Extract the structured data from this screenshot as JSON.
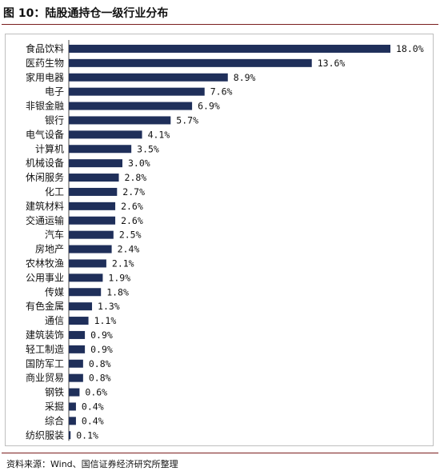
{
  "figure": {
    "title": "图 10：陆股通持仓一级行业分布",
    "source": "资料来源：Wind、国信证券经济研究所整理"
  },
  "colors": {
    "bar": "#1f2f5a",
    "rule": "#7a1e1e",
    "frame": "#bfbfbf"
  },
  "chart_data": {
    "type": "bar",
    "orientation": "horizontal",
    "categories": [
      "食品饮料",
      "医药生物",
      "家用电器",
      "电子",
      "非银金融",
      "银行",
      "电气设备",
      "计算机",
      "机械设备",
      "休闲服务",
      "化工",
      "建筑材料",
      "交通运输",
      "汽车",
      "房地产",
      "农林牧渔",
      "公用事业",
      "传媒",
      "有色金属",
      "通信",
      "建筑装饰",
      "轻工制造",
      "国防军工",
      "商业贸易",
      "钢铁",
      "采掘",
      "综合",
      "纺织服装"
    ],
    "values": [
      18.0,
      13.6,
      8.9,
      7.6,
      6.9,
      5.7,
      4.1,
      3.5,
      3.0,
      2.8,
      2.7,
      2.6,
      2.6,
      2.5,
      2.4,
      2.1,
      1.9,
      1.8,
      1.3,
      1.1,
      0.9,
      0.9,
      0.8,
      0.8,
      0.6,
      0.4,
      0.4,
      0.1
    ],
    "labels": [
      "18.0%",
      "13.6%",
      "8.9%",
      "7.6%",
      "6.9%",
      "5.7%",
      "4.1%",
      "3.5%",
      "3.0%",
      "2.8%",
      "2.7%",
      "2.6%",
      "2.6%",
      "2.5%",
      "2.4%",
      "2.1%",
      "1.9%",
      "1.8%",
      "1.3%",
      "1.1%",
      "0.9%",
      "0.9%",
      "0.8%",
      "0.8%",
      "0.6%",
      "0.4%",
      "0.4%",
      "0.1%"
    ],
    "xlim": [
      0,
      18.0
    ],
    "grid": false,
    "legend": false
  }
}
